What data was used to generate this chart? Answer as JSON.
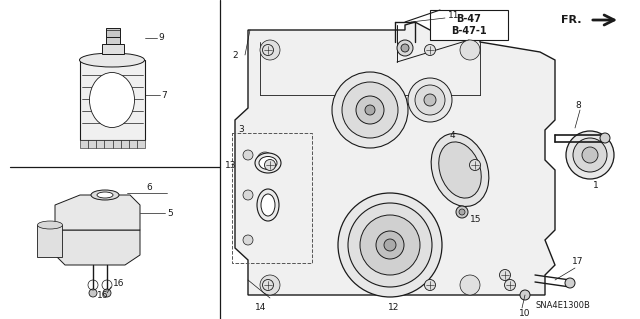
{
  "bg_color": "#ffffff",
  "line_color": "#1a1a1a",
  "code": "SNA4E1300B",
  "ref_text1": "B-47",
  "ref_text2": "B-47-1",
  "fig_width": 6.4,
  "fig_height": 3.19,
  "dpi": 100
}
